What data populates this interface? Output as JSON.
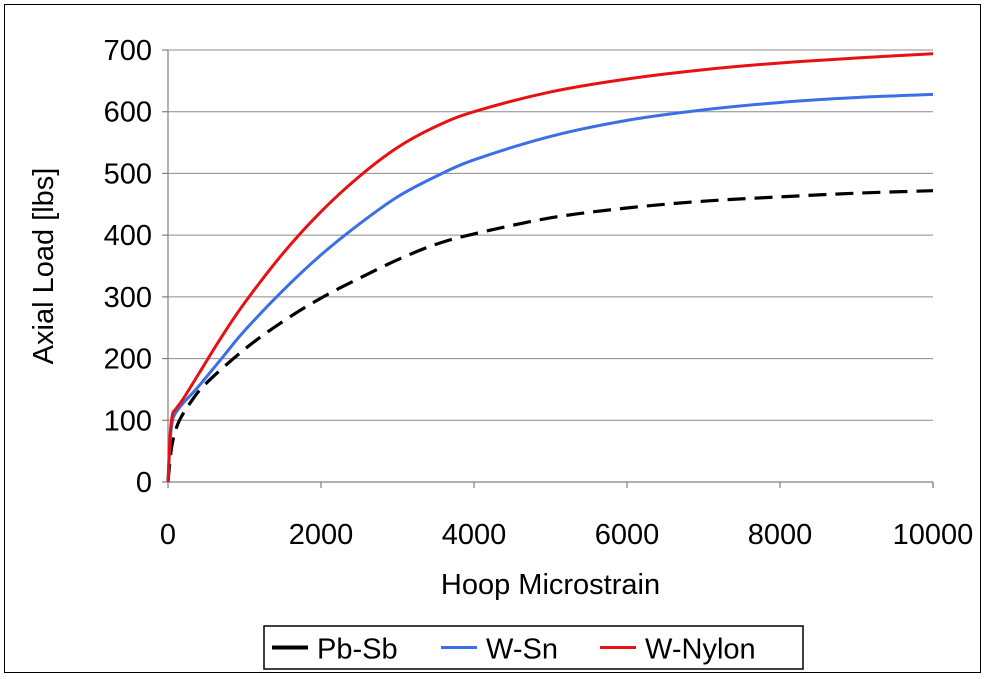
{
  "chart_data": {
    "type": "line",
    "xlabel": "Hoop Microstrain",
    "ylabel": "Axial Load [lbs]",
    "xlim": [
      0,
      10000
    ],
    "ylim": [
      0,
      700
    ],
    "xticks": [
      0,
      2000,
      4000,
      6000,
      8000,
      10000
    ],
    "yticks": [
      0,
      100,
      200,
      300,
      400,
      500,
      600,
      700
    ],
    "grid": "horizontal",
    "legend_position": "bottom",
    "series": [
      {
        "name": "Pb-Sb",
        "color": "#000000",
        "style": "dashed",
        "x": [
          0,
          40,
          80,
          150,
          300,
          500,
          1000,
          1500,
          2000,
          2500,
          3000,
          3500,
          4000,
          5000,
          6000,
          7000,
          8000,
          9000,
          10000
        ],
        "y": [
          0,
          50,
          75,
          100,
          130,
          160,
          215,
          260,
          298,
          330,
          360,
          385,
          402,
          428,
          444,
          455,
          462,
          468,
          472
        ]
      },
      {
        "name": "W-Sn",
        "color": "#3a6fe6",
        "style": "solid",
        "x": [
          0,
          30,
          60,
          100,
          200,
          400,
          700,
          1000,
          1500,
          2000,
          2500,
          3000,
          3500,
          4000,
          5000,
          6000,
          7000,
          8000,
          9000,
          10000
        ],
        "y": [
          0,
          70,
          100,
          112,
          128,
          155,
          200,
          245,
          310,
          368,
          418,
          462,
          495,
          522,
          560,
          586,
          603,
          615,
          623,
          628
        ]
      },
      {
        "name": "W-Nylon",
        "color": "#e81010",
        "style": "solid",
        "x": [
          0,
          30,
          60,
          100,
          200,
          400,
          700,
          1000,
          1500,
          2000,
          2500,
          3000,
          3500,
          4000,
          5000,
          6000,
          7000,
          8000,
          9000,
          10000
        ],
        "y": [
          0,
          80,
          110,
          118,
          135,
          175,
          235,
          290,
          370,
          438,
          495,
          542,
          576,
          600,
          632,
          653,
          668,
          679,
          687,
          694
        ]
      }
    ]
  }
}
